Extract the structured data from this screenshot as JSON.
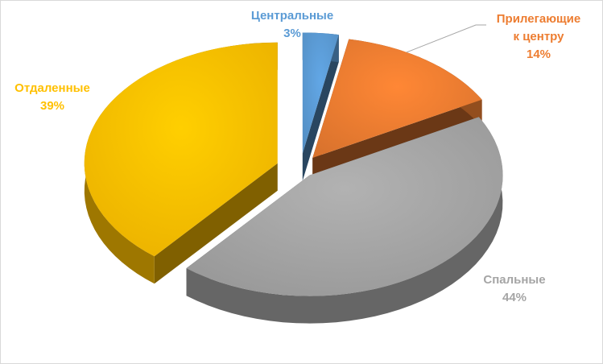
{
  "chart_data": {
    "type": "pie",
    "title": "",
    "slices": [
      {
        "name": "Центральные",
        "value": 3,
        "label": "3%",
        "color": "#5b9bd5"
      },
      {
        "name": "Прилегающие к центру",
        "name_lines": [
          "Прилегающие",
          "к центру"
        ],
        "value": 14,
        "label": "14%",
        "color": "#ed7d31"
      },
      {
        "name": "Спальные",
        "value": 44,
        "label": "44%",
        "color": "#a5a5a5"
      },
      {
        "name": "Отдаленные",
        "value": 39,
        "label": "39%",
        "color": "#ffc000"
      }
    ],
    "exploded": true,
    "style": "3d"
  }
}
